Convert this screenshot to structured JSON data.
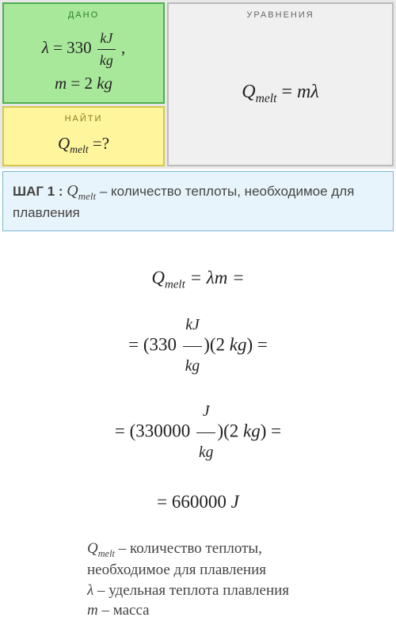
{
  "given": {
    "header": "ДАНО",
    "line1_var": "λ",
    "line1_eq": " = 330 ",
    "line1_frac_num": "kJ",
    "line1_frac_den": "kg",
    "line1_tail": " ,",
    "line2_var": "m",
    "line2_val": " = 2 ",
    "line2_unit": "kg"
  },
  "find": {
    "header": "НАЙТИ",
    "var": "Q",
    "sub": "melt",
    "tail": " =?"
  },
  "equations": {
    "header": "УРАВНЕНИЯ",
    "lhs_var": "Q",
    "lhs_sub": "melt",
    "eq": " = ",
    "rhs": "mλ"
  },
  "step": {
    "label": "ШАГ 1 : ",
    "var": "Q",
    "sub": "melt",
    "desc": " – количество теплоты, необходимое для плавления"
  },
  "calc": {
    "l1_a": "Q",
    "l1_sub": "melt",
    "l1_b": " = λm =",
    "l2_a": "= (330 ",
    "l2_num": "kJ",
    "l2_den": "kg",
    "l2_b": ")(2 ",
    "l2_c": "kg",
    "l2_d": ") =",
    "l3_a": "= (330000 ",
    "l3_num": "J",
    "l3_den": "kg",
    "l3_b": ")(2 ",
    "l3_c": "kg",
    "l3_d": ") =",
    "l4": "= 660000 ",
    "l4_unit": "J"
  },
  "defs": {
    "d1_var": "Q",
    "d1_sub": "melt",
    "d1_txt": " – количество теплоты, необходимое для плавления",
    "d2_var": "λ",
    "d2_txt": " – удельная теплота плавления",
    "d3_var": "m",
    "d3_txt": " – масса"
  }
}
